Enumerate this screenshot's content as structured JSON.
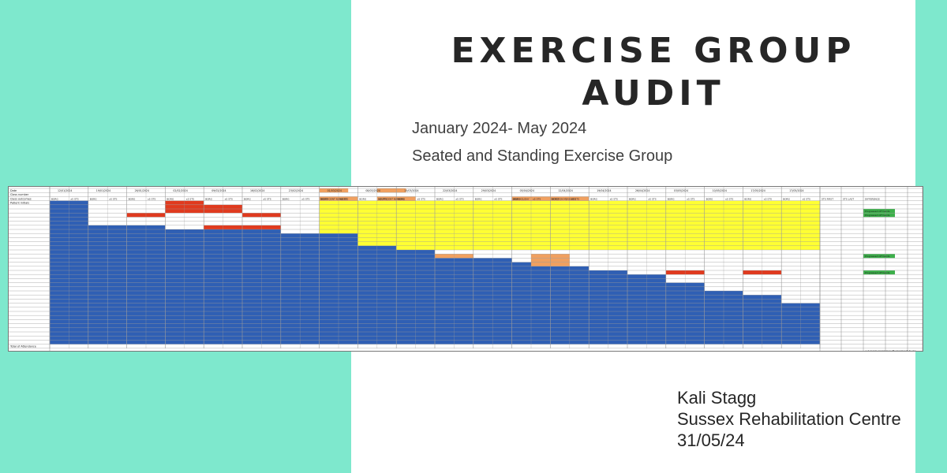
{
  "colors": {
    "mint": "#7ee8cd",
    "blue": "#2f5fb4",
    "yellow": "#ffff33",
    "orange": "#f0a060",
    "red": "#e03a1e",
    "green": "#3cb04a"
  },
  "slide": {
    "title_line1": "EXERCISE GROUP",
    "title_line2": "AUDIT",
    "subtitle1": "January 2024- May 2024",
    "subtitle2": "Seated and Standing Exercise Group",
    "author_name": "Kali Stagg",
    "author_org": "Sussex Rehabilitation Centre",
    "author_date": "31/05/24"
  },
  "sheet": {
    "row_labels": [
      "Date",
      "Class number",
      "Class outcomes",
      "Patient initials"
    ],
    "footer_label": "Total of Attendance",
    "dates": [
      "12/01/2024",
      "19/01/2024",
      "26/01/2024",
      "02/02/2024",
      "09/02/2024",
      "16/02/2024",
      "23/02/2024",
      "01/03/2024",
      "08/03/2024",
      "15/03/2024",
      "22/03/2024",
      "29/03/2024",
      "05/04/2024",
      "12/04/2024",
      "19/04/2024",
      "26/04/2024",
      "03/05/2024",
      "10/05/2024",
      "17/05/2024",
      "17/05/2024"
    ],
    "sub_headers": [
      "BORG",
      "x5 STS"
    ],
    "notes": [
      "INSUFFICIENT NUMBERS",
      "INSUFFICIENT NUMBERS",
      "BANK HOLIDAY",
      "INFECTION MEASURES"
    ],
    "right_headers": [
      "STS FIRST",
      "STS LAST",
      "DIFFERENCE"
    ],
    "status_labels": [
      "Progressed off hands",
      "Progressed off hands",
      "Progressed off hands",
      "Progressed off hands"
    ],
    "footer_note": "< 4 people progressing off using hands to rise"
  }
}
